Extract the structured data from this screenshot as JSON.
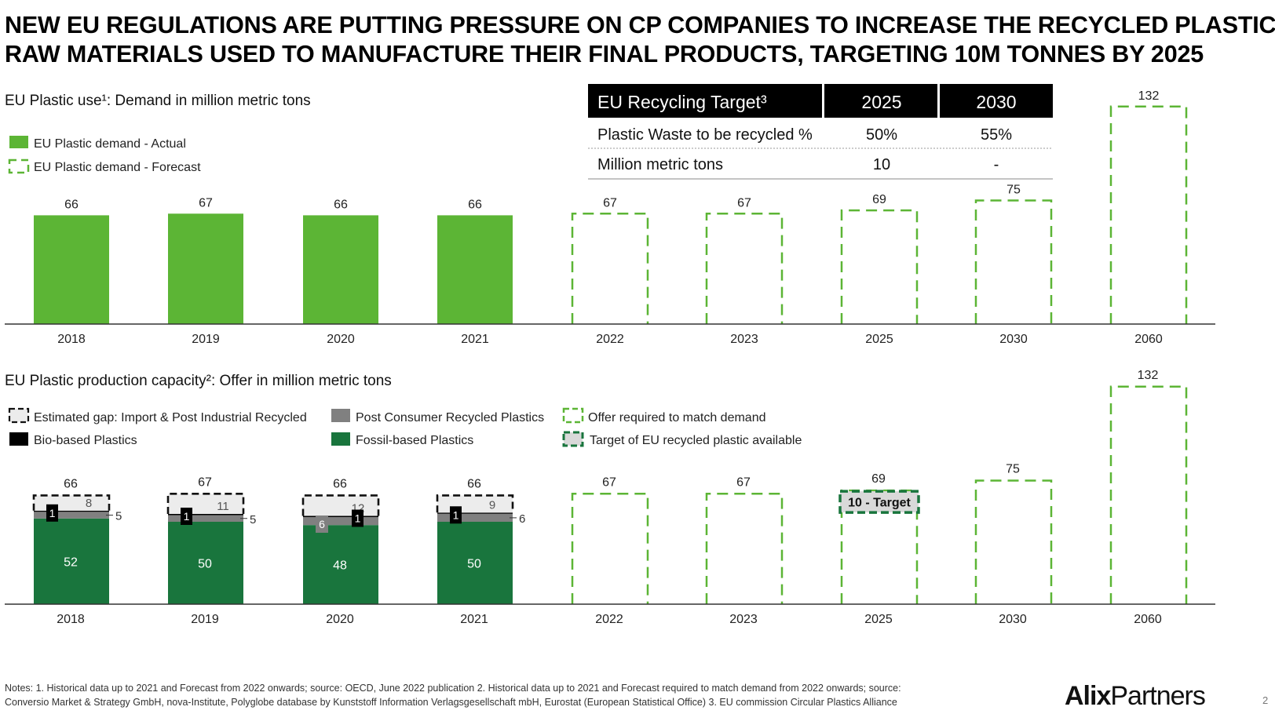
{
  "title_lines": [
    "NEW EU REGULATIONS ARE PUTTING PRESSURE ON CP COMPANIES TO INCREASE THE RECYCLED PLASTIC",
    "RAW MATERIALS USED TO MANUFACTURE THEIR FINAL PRODUCTS, TARGETING 10M TONNES BY 2025"
  ],
  "colors": {
    "actual_green": "#5cb535",
    "forecast_green": "#5cb535",
    "fossil_green": "#19753d",
    "post_consumer_grey": "#808080",
    "bio_black": "#000000",
    "gap_fill": "#ececec",
    "target_fill": "#d9d9d9",
    "target_border": "#19753d"
  },
  "recycling_table": {
    "header": [
      "EU Recycling Target³",
      "2025",
      "2030"
    ],
    "rows": [
      [
        "Plastic Waste to be recycled %",
        "50%",
        "55%"
      ],
      [
        "Million metric tons",
        "10",
        "-"
      ]
    ]
  },
  "chart_data": [
    {
      "type": "bar",
      "title": "EU Plastic use¹: Demand in million metric tons",
      "categories": [
        "2018",
        "2019",
        "2020",
        "2021",
        "2022",
        "2023",
        "2025",
        "2030",
        "2060"
      ],
      "series": [
        {
          "name": "EU Plastic demand - Actual",
          "values": [
            66,
            67,
            66,
            66,
            null,
            null,
            null,
            null,
            null
          ]
        },
        {
          "name": "EU Plastic demand - Forecast",
          "values": [
            null,
            null,
            null,
            null,
            67,
            67,
            69,
            75,
            132
          ]
        }
      ],
      "data_labels": [
        "66",
        "67",
        "66",
        "66",
        "67",
        "67",
        "69",
        "75",
        "132"
      ],
      "legend_position": "top-left",
      "grid": false
    },
    {
      "type": "bar",
      "title": "EU Plastic production capacity²: Offer in million metric tons",
      "categories": [
        "2018",
        "2019",
        "2020",
        "2021",
        "2022",
        "2023",
        "2025",
        "2030",
        "2060"
      ],
      "totals": [
        66,
        67,
        66,
        66,
        67,
        67,
        69,
        75,
        132
      ],
      "total_labels": [
        "66",
        "67",
        "66",
        "66",
        "67",
        "67",
        "69",
        "75",
        "132"
      ],
      "series": [
        {
          "name": "Fossil-based Plastics",
          "values": [
            52,
            50,
            48,
            50,
            null,
            null,
            null,
            null,
            null
          ]
        },
        {
          "name": "Post Consumer Recycled Plastics",
          "values": [
            5,
            5,
            6,
            6,
            null,
            null,
            null,
            null,
            null
          ]
        },
        {
          "name": "Bio-based Plastics",
          "values": [
            1,
            1,
            1,
            1,
            null,
            null,
            null,
            null,
            null
          ]
        },
        {
          "name": "Estimated gap: Import & Post Industrial Recycled",
          "values": [
            8,
            11,
            12,
            9,
            null,
            null,
            null,
            null,
            null
          ]
        },
        {
          "name": "Offer required to match demand",
          "values": [
            null,
            null,
            null,
            null,
            67,
            67,
            69,
            75,
            132
          ]
        }
      ],
      "target": {
        "category": "2025",
        "value": 10,
        "label": "10  - Target",
        "series_name": "Target of EU recycled plastic available"
      },
      "legend": [
        "Estimated gap: Import & Post Industrial Recycled",
        "Post Consumer Recycled Plastics",
        "Offer required to match demand",
        "Bio-based Plastics",
        "Fossil-based Plastics",
        "Target of EU recycled plastic available"
      ],
      "legend_position": "top-left",
      "grid": false
    }
  ],
  "notes_lines": [
    "Notes: 1. Historical data up to 2021 and Forecast from 2022 onwards; source: OECD, June 2022 publication 2. Historical data up to 2021 and Forecast required to match demand from 2022 onwards; source:",
    "Conversio Market & Strategy GmbH, nova-Institute, Polyglobe database by Kunststoff Information Verlagsgesellschaft mbH, Eurostat (European Statistical Office) 3. EU commission Circular Plastics Alliance"
  ],
  "logo": {
    "part1": "Alix",
    "part2": "Partners"
  },
  "page_number": "2"
}
